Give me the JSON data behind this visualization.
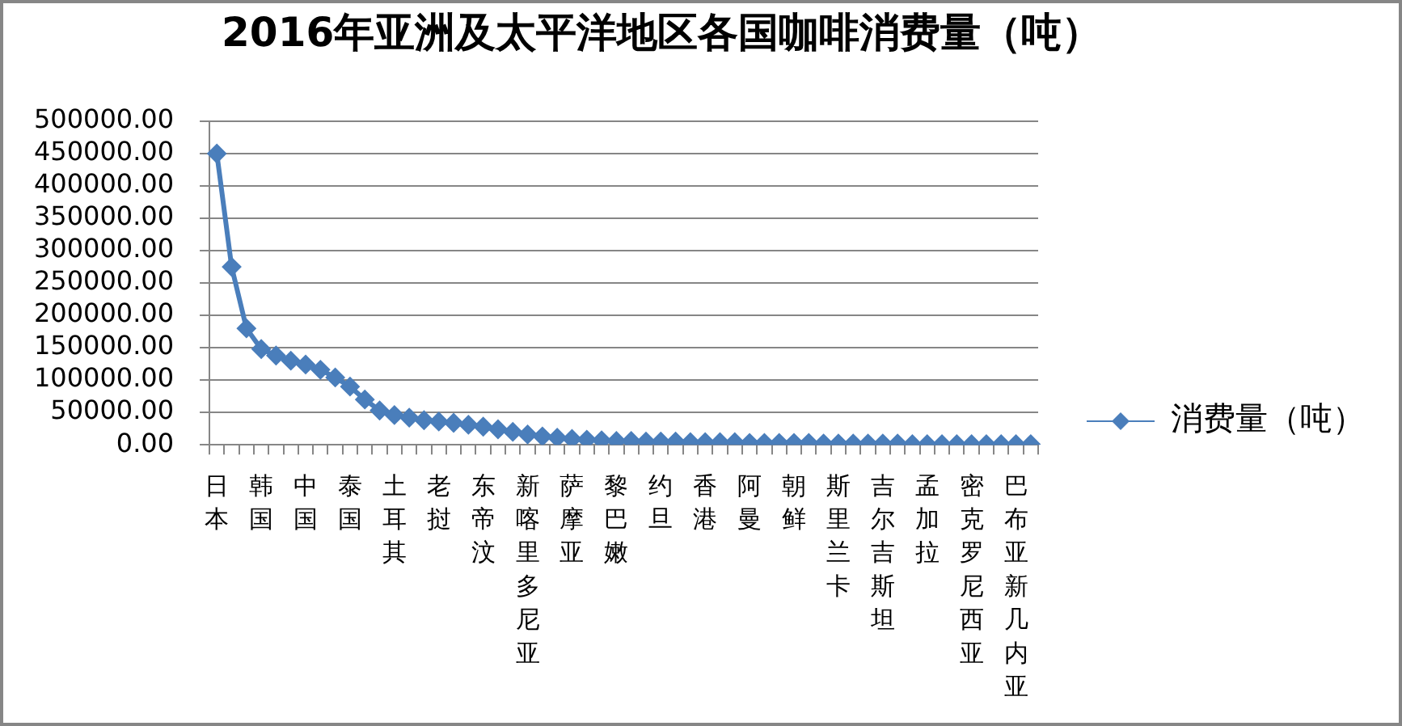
{
  "chart_data": {
    "type": "line",
    "title": "2016年亚洲及太平洋地区各国咖啡消费量（吨）",
    "categories": [
      "日本",
      null,
      null,
      "韩国",
      null,
      null,
      "中国",
      null,
      null,
      "泰国",
      null,
      null,
      "土耳其",
      null,
      null,
      "老挝",
      null,
      null,
      "东帝汶",
      null,
      null,
      "新喀里多尼亚",
      null,
      null,
      "萨摩亚",
      null,
      null,
      "黎巴嫩",
      null,
      null,
      "约旦",
      null,
      null,
      "香港",
      null,
      null,
      "阿曼",
      null,
      null,
      "朝鲜",
      null,
      null,
      "斯里兰卡",
      null,
      null,
      "吉尔吉斯坦",
      null,
      null,
      "孟加拉",
      null,
      null,
      "密克罗尼西亚",
      null,
      null,
      "巴布亚新几内亚",
      null
    ],
    "series": [
      {
        "name": "消费量（吨）",
        "color": "#4a7ebb",
        "values": [
          450000,
          275000,
          180000,
          148000,
          138000,
          130000,
          124000,
          116000,
          104000,
          90000,
          70000,
          53000,
          46000,
          42000,
          38000,
          36000,
          34000,
          31000,
          28000,
          24000,
          20000,
          16000,
          13000,
          11000,
          9000,
          8000,
          7000,
          6000,
          6000,
          5000,
          5000,
          5000,
          4000,
          4000,
          4000,
          4000,
          3000,
          3000,
          3000,
          3000,
          3000,
          2000,
          2000,
          2000,
          2000,
          2000,
          2000,
          1000,
          1000,
          1000,
          1000,
          1000,
          1000,
          1000,
          1000,
          1000
        ]
      }
    ],
    "ylim": [
      0,
      500000
    ],
    "yticks": [
      {
        "value": 0,
        "label": "0.00"
      },
      {
        "value": 50000,
        "label": "50000.00"
      },
      {
        "value": 100000,
        "label": "100000.00"
      },
      {
        "value": 150000,
        "label": "150000.00"
      },
      {
        "value": 200000,
        "label": "200000.00"
      },
      {
        "value": 250000,
        "label": "250000.00"
      },
      {
        "value": 300000,
        "label": "300000.00"
      },
      {
        "value": 350000,
        "label": "350000.00"
      },
      {
        "value": 400000,
        "label": "400000.00"
      },
      {
        "value": 450000,
        "label": "450000.00"
      },
      {
        "value": 500000,
        "label": "500000.00"
      }
    ],
    "grid": "y",
    "legend": "right",
    "marker": "diamond"
  }
}
